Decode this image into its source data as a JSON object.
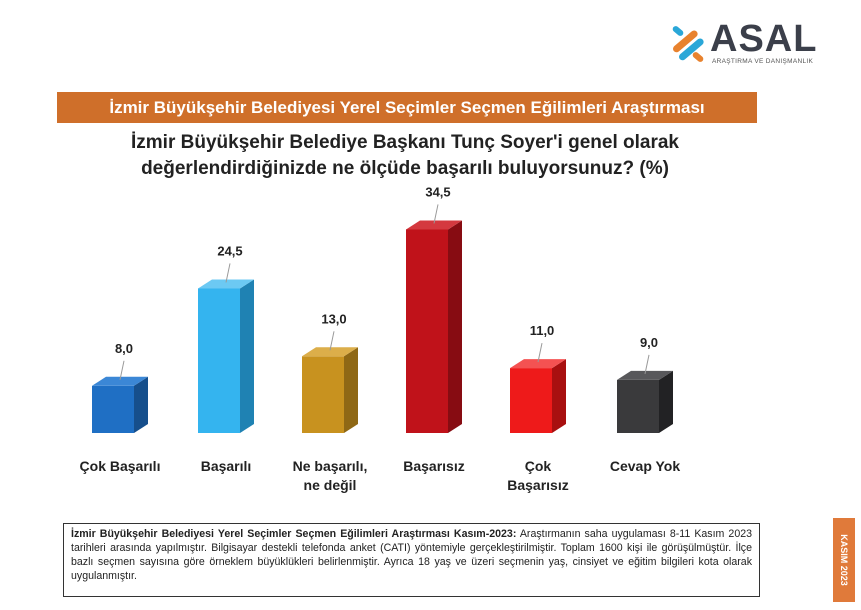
{
  "brand": {
    "name": "ASAL",
    "tagline": "ARAŞTIRMA VE DANIŞMANLIK"
  },
  "banner_title": "İzmir Büyükşehir Belediyesi Yerel Seçimler Seçmen Eğilimleri Araştırması",
  "question": "İzmir Büyükşehir Belediye Başkanı Tunç Soyer'i genel olarak değerlendirdiğinizde ne ölçüde başarılı buluyorsunuz? (%)",
  "chart_data": {
    "type": "bar",
    "categories": [
      "Çok Başarılı",
      "Başarılı",
      "Ne başarılı, ne değil",
      "Başarısız",
      "Çok Başarısız",
      "Cevap Yok"
    ],
    "category_lines": [
      [
        "Çok Başarılı"
      ],
      [
        "Başarılı"
      ],
      [
        "Ne başarılı,",
        "ne değil"
      ],
      [
        "Başarısız"
      ],
      [
        "Çok",
        "Başarısız"
      ],
      [
        "Cevap Yok"
      ]
    ],
    "values": [
      8.0,
      24.5,
      13.0,
      34.5,
      11.0,
      9.0
    ],
    "value_labels": [
      "8,0",
      "24,5",
      "13,0",
      "34,5",
      "11,0",
      "9,0"
    ],
    "colors": [
      "#1f6fc4",
      "#34b4ef",
      "#c8921f",
      "#c0121a",
      "#ee1a1a",
      "#3a3a3c"
    ],
    "side_colors": [
      "#164f8c",
      "#1f82b3",
      "#8f6815",
      "#870c12",
      "#a81010",
      "#222224"
    ],
    "top_colors": [
      "#3b87d6",
      "#6cc9f3",
      "#dcae4a",
      "#d4393f",
      "#f45252",
      "#58585b"
    ],
    "ylim": [
      0,
      40
    ],
    "title": "",
    "xlabel": "",
    "ylabel": ""
  },
  "footnote": {
    "bold": "İzmir Büyükşehir Belediyesi Yerel Seçimler Seçmen Eğilimleri Araştırması Kasım-2023:",
    "text": " Araştırmanın saha uygulaması 8-11 Kasım 2023 tarihleri arasında yapılmıştır. Bilgisayar destekli telefonda anket (CATI) yöntemiyle gerçekleştirilmiştir. Toplam 1600 kişi ile görüşülmüştür. İlçe bazlı seçmen sayısına göre örneklem büyüklükleri belirlenmiştir. Ayrıca 18 yaş ve üzeri seçmenin yaş, cinsiyet ve eğitim bilgileri kota olarak uygulanmıştır."
  },
  "side_tag": "KASIM 2023"
}
